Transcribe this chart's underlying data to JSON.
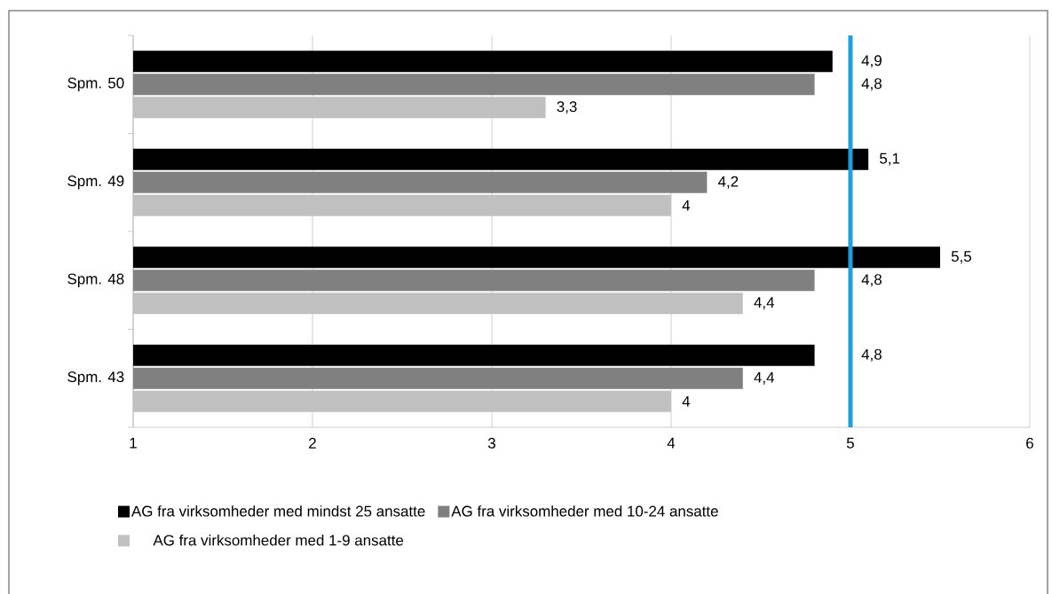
{
  "chart_data": {
    "type": "bar",
    "orientation": "horizontal",
    "categories": [
      "Spm. 50",
      "Spm. 49",
      "Spm. 48",
      "Spm. 43"
    ],
    "series": [
      {
        "name": "AG fra virksomheder med mindst 25 ansatte",
        "color": "#000000",
        "values": [
          4.9,
          5.1,
          5.5,
          4.8
        ],
        "value_labels": [
          "4,9",
          "5,1",
          "5,5",
          "4,8"
        ]
      },
      {
        "name": "AG fra virksomheder med 10-24 ansatte",
        "color": "#808080",
        "values": [
          4.8,
          4.2,
          4.8,
          4.4
        ],
        "value_labels": [
          "4,8",
          "4,2",
          "4,8",
          "4,4"
        ]
      },
      {
        "name": "AG fra virksomheder med 1-9 ansatte",
        "color": "#c0c0c0",
        "values": [
          3.3,
          4,
          4.4,
          4
        ],
        "value_labels": [
          "3,3",
          "4",
          "4,4",
          "4"
        ]
      }
    ],
    "xlim": [
      1,
      6
    ],
    "xticks": [
      1,
      2,
      3,
      4,
      5,
      6
    ],
    "grid": "x",
    "legend": "bottom",
    "ref_lines": [
      {
        "axis": "x",
        "value": 5,
        "color": "#1ba1e2"
      }
    ]
  }
}
